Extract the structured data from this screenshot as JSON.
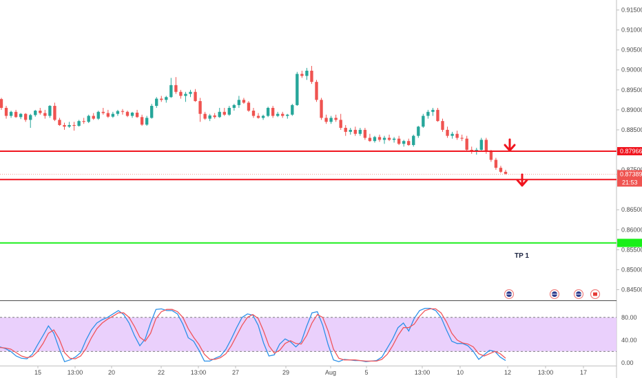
{
  "chart_data": [
    {
      "type": "candlestick",
      "title": "",
      "ylim": [
        0.8425,
        0.9175
      ],
      "y_ticks": [
        "0.91500",
        "0.91000",
        "0.90500",
        "0.90000",
        "0.89500",
        "0.89000",
        "0.88500",
        "0.88000",
        "0.87500",
        "0.86500",
        "0.86000",
        "0.85500",
        "0.85000",
        "0.84500"
      ],
      "x_ticks": [
        "15",
        "13:00",
        "20",
        "22",
        "13:00",
        "27",
        "29",
        "Aug",
        "5",
        "13:00",
        "10",
        "12",
        "13:00",
        "17"
      ],
      "grid": false,
      "series": [
        {
          "values": [
            [
              0.8927,
              0.893,
              0.89,
              0.8905
            ],
            [
              0.8905,
              0.891,
              0.8878,
              0.8885
            ],
            [
              0.8885,
              0.8898,
              0.888,
              0.8895
            ],
            [
              0.8895,
              0.89,
              0.888,
              0.8882
            ],
            [
              0.8882,
              0.8892,
              0.8877,
              0.889
            ],
            [
              0.889,
              0.8892,
              0.887,
              0.8875
            ],
            [
              0.8875,
              0.889,
              0.8855,
              0.8887
            ],
            [
              0.8887,
              0.89,
              0.8883,
              0.8898
            ],
            [
              0.8898,
              0.8905,
              0.8888,
              0.8892
            ],
            [
              0.8892,
              0.89,
              0.8878,
              0.8885
            ],
            [
              0.8885,
              0.8912,
              0.888,
              0.891
            ],
            [
              0.891,
              0.8918,
              0.8872,
              0.8875
            ],
            [
              0.8875,
              0.888,
              0.886,
              0.8862
            ],
            [
              0.8862,
              0.8868,
              0.885,
              0.8858
            ],
            [
              0.8858,
              0.887,
              0.8855,
              0.8862
            ],
            [
              0.8862,
              0.887,
              0.8848,
              0.886
            ],
            [
              0.886,
              0.8875,
              0.8858,
              0.8872
            ],
            [
              0.8872,
              0.888,
              0.8865,
              0.887
            ],
            [
              0.887,
              0.8888,
              0.8867,
              0.8885
            ],
            [
              0.8885,
              0.8892,
              0.8875,
              0.8878
            ],
            [
              0.8878,
              0.8898,
              0.8875,
              0.8895
            ],
            [
              0.8895,
              0.8905,
              0.8888,
              0.8892
            ],
            [
              0.8892,
              0.89,
              0.888,
              0.8883
            ],
            [
              0.8883,
              0.8895,
              0.888,
              0.889
            ],
            [
              0.889,
              0.89,
              0.8885,
              0.8897
            ],
            [
              0.8897,
              0.8902,
              0.8888,
              0.8895
            ],
            [
              0.8895,
              0.8898,
              0.8882,
              0.8885
            ],
            [
              0.8885,
              0.8895,
              0.888,
              0.8893
            ],
            [
              0.8893,
              0.89,
              0.888,
              0.8882
            ],
            [
              0.8882,
              0.8888,
              0.886,
              0.8863
            ],
            [
              0.8863,
              0.8885,
              0.886,
              0.888
            ],
            [
              0.888,
              0.8915,
              0.8878,
              0.891
            ],
            [
              0.891,
              0.8932,
              0.8905,
              0.8928
            ],
            [
              0.8928,
              0.8935,
              0.892,
              0.8925
            ],
            [
              0.8925,
              0.8935,
              0.8918,
              0.8932
            ],
            [
              0.8932,
              0.898,
              0.893,
              0.8962
            ],
            [
              0.8962,
              0.8982,
              0.894,
              0.8945
            ],
            [
              0.8945,
              0.895,
              0.8928,
              0.8935
            ],
            [
              0.8935,
              0.8945,
              0.892,
              0.894
            ],
            [
              0.894,
              0.895,
              0.8932,
              0.8945
            ],
            [
              0.8945,
              0.8952,
              0.892,
              0.8922
            ],
            [
              0.8922,
              0.893,
              0.887,
              0.889
            ],
            [
              0.889,
              0.8895,
              0.8875,
              0.8878
            ],
            [
              0.8878,
              0.889,
              0.8872,
              0.8886
            ],
            [
              0.8886,
              0.8892,
              0.8878,
              0.8882
            ],
            [
              0.8882,
              0.8905,
              0.888,
              0.8895
            ],
            [
              0.8895,
              0.8905,
              0.8885,
              0.8888
            ],
            [
              0.8888,
              0.891,
              0.8885,
              0.8905
            ],
            [
              0.8905,
              0.8915,
              0.8898,
              0.8912
            ],
            [
              0.8912,
              0.8935,
              0.8905,
              0.8925
            ],
            [
              0.8925,
              0.893,
              0.8915,
              0.8918
            ],
            [
              0.8918,
              0.8922,
              0.8895,
              0.8898
            ],
            [
              0.8898,
              0.8905,
              0.888,
              0.8885
            ],
            [
              0.8885,
              0.8892,
              0.8878,
              0.888
            ],
            [
              0.888,
              0.8888,
              0.8875,
              0.8885
            ],
            [
              0.8885,
              0.8908,
              0.8882,
              0.8905
            ],
            [
              0.8905,
              0.891,
              0.888,
              0.8885
            ],
            [
              0.8885,
              0.8895,
              0.8882,
              0.889
            ],
            [
              0.889,
              0.8895,
              0.888,
              0.8885
            ],
            [
              0.8885,
              0.889,
              0.8878,
              0.8888
            ],
            [
              0.8888,
              0.8915,
              0.8885,
              0.8912
            ],
            [
              0.8912,
              0.8995,
              0.891,
              0.899
            ],
            [
              0.899,
              0.8998,
              0.898,
              0.8985
            ],
            [
              0.8985,
              0.9005,
              0.8975,
              0.8998
            ],
            [
              0.8998,
              0.901,
              0.8965,
              0.897
            ],
            [
              0.897,
              0.8975,
              0.892,
              0.8925
            ],
            [
              0.8925,
              0.893,
              0.8875,
              0.888
            ],
            [
              0.888,
              0.8888,
              0.8865,
              0.887
            ],
            [
              0.887,
              0.8885,
              0.8865,
              0.888
            ],
            [
              0.888,
              0.8888,
              0.887,
              0.8875
            ],
            [
              0.8875,
              0.889,
              0.885,
              0.8855
            ],
            [
              0.8855,
              0.8862,
              0.8835,
              0.8845
            ],
            [
              0.8845,
              0.8855,
              0.8838,
              0.885
            ],
            [
              0.885,
              0.8858,
              0.8835,
              0.884
            ],
            [
              0.884,
              0.8855,
              0.8835,
              0.885
            ],
            [
              0.885,
              0.8855,
              0.8825,
              0.883
            ],
            [
              0.883,
              0.884,
              0.882,
              0.8822
            ],
            [
              0.8822,
              0.8835,
              0.8818,
              0.8832
            ],
            [
              0.8832,
              0.8838,
              0.882,
              0.8825
            ],
            [
              0.8825,
              0.8835,
              0.8815,
              0.883
            ],
            [
              0.883,
              0.8838,
              0.8822,
              0.8825
            ],
            [
              0.8825,
              0.8832,
              0.8818,
              0.8828
            ],
            [
              0.8828,
              0.8835,
              0.8812,
              0.8815
            ],
            [
              0.8815,
              0.8825,
              0.8808,
              0.8822
            ],
            [
              0.8822,
              0.8828,
              0.881,
              0.8812
            ],
            [
              0.8812,
              0.8838,
              0.8808,
              0.8835
            ],
            [
              0.8835,
              0.886,
              0.883,
              0.8858
            ],
            [
              0.8858,
              0.889,
              0.8855,
              0.8885
            ],
            [
              0.8885,
              0.89,
              0.8878,
              0.8895
            ],
            [
              0.8895,
              0.8905,
              0.8885,
              0.89
            ],
            [
              0.89,
              0.8905,
              0.887,
              0.8872
            ],
            [
              0.8872,
              0.8878,
              0.8845,
              0.885
            ],
            [
              0.885,
              0.8858,
              0.883,
              0.8835
            ],
            [
              0.8835,
              0.8845,
              0.8828,
              0.884
            ],
            [
              0.884,
              0.8848,
              0.8825,
              0.883
            ],
            [
              0.883,
              0.8838,
              0.8822,
              0.8828
            ],
            [
              0.8828,
              0.8835,
              0.8795,
              0.88
            ],
            [
              0.88,
              0.8808,
              0.879,
              0.8795
            ],
            [
              0.8795,
              0.8805,
              0.8788,
              0.88
            ],
            [
              0.88,
              0.883,
              0.8795,
              0.8825
            ],
            [
              0.8825,
              0.883,
              0.879,
              0.8795
            ],
            [
              0.8795,
              0.88,
              0.877,
              0.8775
            ],
            [
              0.8775,
              0.878,
              0.875,
              0.8755
            ],
            [
              0.8755,
              0.876,
              0.8742,
              0.8745
            ],
            [
              0.8745,
              0.875,
              0.8738,
              0.874
            ]
          ]
        }
      ],
      "horizontal_lines": [
        {
          "label": "0.87966",
          "value": 0.87966,
          "color": "#f0141e"
        },
        {
          "label": "0.87256",
          "value": 0.87256,
          "color": "#f0141e"
        },
        {
          "label": "",
          "value": 0.8567,
          "color": "#19ef19"
        }
      ],
      "last_price": {
        "label": "0.87389",
        "value": 0.87389,
        "countdown": "21:53"
      },
      "annotations": [
        {
          "text": "TP 1",
          "value": 0.8537
        }
      ],
      "colors": {
        "up": "#26a69a",
        "down": "#ef5350"
      }
    },
    {
      "type": "line",
      "title": "",
      "ylim": [
        -5,
        110
      ],
      "y_ticks": [
        "80.00",
        "40.00",
        "0.00"
      ],
      "band": [
        20,
        80
      ],
      "band_color": "#e6c8fb",
      "series": [
        {
          "color": "#2b90e8",
          "values": [
            28,
            25,
            20,
            12,
            8,
            7,
            15,
            32,
            48,
            65,
            52,
            25,
            2,
            5,
            10,
            18,
            40,
            58,
            70,
            76,
            80,
            86,
            92,
            85,
            70,
            48,
            30,
            42,
            70,
            94,
            95,
            92,
            92,
            86,
            68,
            44,
            38,
            22,
            3,
            3,
            8,
            12,
            24,
            42,
            62,
            80,
            86,
            84,
            66,
            35,
            12,
            14,
            33,
            42,
            37,
            28,
            37,
            64,
            88,
            90,
            66,
            32,
            5,
            2,
            6,
            5,
            4,
            4,
            2,
            3,
            4,
            10,
            26,
            42,
            62,
            70,
            56,
            78,
            92,
            96,
            96,
            92,
            80,
            58,
            38,
            34,
            34,
            30,
            20,
            6,
            14,
            22,
            20,
            10,
            4
          ]
        },
        {
          "color": "#f0545a",
          "values": [
            27,
            26,
            24,
            18,
            12,
            9,
            11,
            20,
            34,
            52,
            58,
            42,
            18,
            8,
            7,
            12,
            25,
            44,
            60,
            70,
            77,
            82,
            88,
            88,
            80,
            64,
            45,
            38,
            52,
            78,
            90,
            94,
            94,
            90,
            80,
            60,
            45,
            32,
            15,
            6,
            6,
            9,
            16,
            30,
            48,
            66,
            80,
            85,
            78,
            56,
            30,
            17,
            22,
            34,
            39,
            34,
            33,
            48,
            70,
            85,
            80,
            56,
            24,
            8,
            5,
            5,
            5,
            4,
            3,
            3,
            3,
            6,
            15,
            30,
            48,
            62,
            62,
            68,
            82,
            92,
            95,
            95,
            88,
            72,
            52,
            40,
            35,
            33,
            28,
            16,
            12,
            16,
            20,
            16,
            8
          ]
        }
      ]
    }
  ],
  "event_icons": [
    "flag-uk-icon",
    "flag-uk-icon",
    "flag-uk-icon",
    "flag-canada-icon"
  ]
}
